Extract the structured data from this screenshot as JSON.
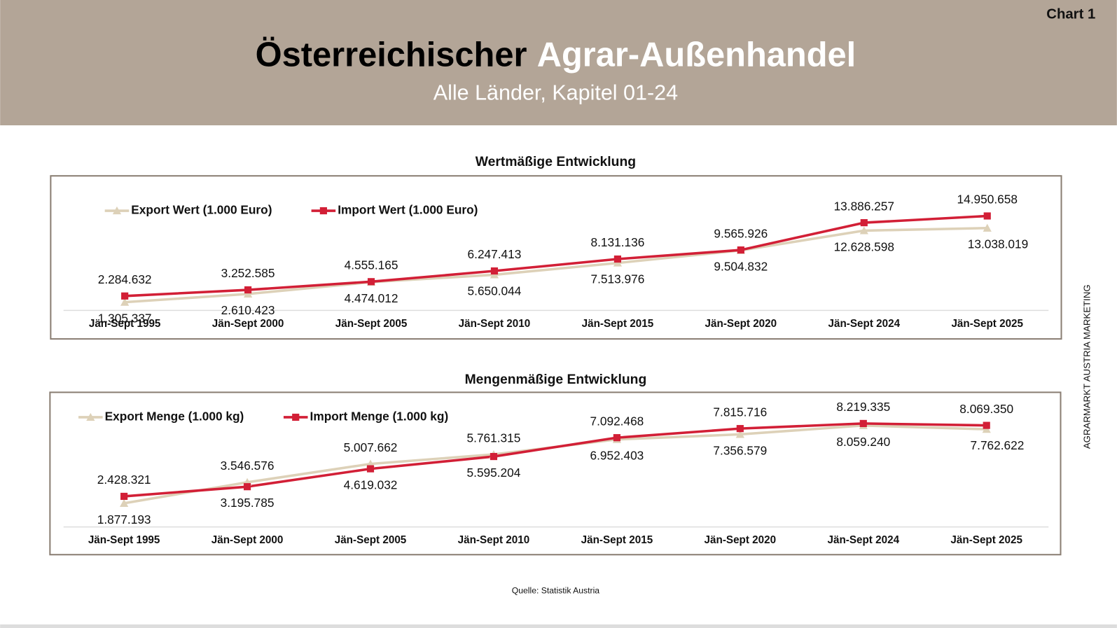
{
  "header": {
    "tag": "Chart 1",
    "title_black": "Österreichischer",
    "title_white": "Agrar-Außenhandel",
    "subtitle": "Alle Länder, Kapitel 01-24"
  },
  "side_text": "AGRARMARKT AUSTRIA MARKETING",
  "source": "Quelle: Statistik Austria",
  "chart_data": [
    {
      "type": "line",
      "title": "Wertmäßige Entwicklung",
      "categories": [
        "Jän-Sept 1995",
        "Jän-Sept 2000",
        "Jän-Sept 2005",
        "Jän-Sept 2010",
        "Jän-Sept 2015",
        "Jän-Sept 2020",
        "Jän-Sept 2024",
        "Jän-Sept 2025"
      ],
      "ylim": [
        0,
        16000000
      ],
      "series": [
        {
          "name": "Export Wert (1.000 Euro)",
          "color": "#ddd1b8",
          "marker": "triangle",
          "values": [
            1305337,
            2610423,
            4474012,
            5650044,
            7513976,
            9504832,
            12628598,
            13038019
          ],
          "value_labels": [
            "1.305.337",
            "2.610.423",
            "4.474.012",
            "5.650.044",
            "7.513.976",
            "9.504.832",
            "12.628.598",
            "13.038.019"
          ]
        },
        {
          "name": "Import Wert (1.000 Euro)",
          "color": "#d21f36",
          "marker": "square",
          "values": [
            2284632,
            3252585,
            4555165,
            6247413,
            8131136,
            9565926,
            13886257,
            14950658
          ],
          "value_labels": [
            "2.284.632",
            "3.252.585",
            "4.555.165",
            "6.247.413",
            "8.131.136",
            "9.565.926",
            "13.886.257",
            "14.950.658"
          ]
        }
      ]
    },
    {
      "type": "line",
      "title": "Mengenmäßige Entwicklung",
      "categories": [
        "Jän-Sept 1995",
        "Jän-Sept 2000",
        "Jän-Sept 2005",
        "Jän-Sept 2010",
        "Jän-Sept 2015",
        "Jän-Sept 2020",
        "Jän-Sept 2024",
        "Jän-Sept 2025"
      ],
      "ylim": [
        0,
        9000000
      ],
      "series": [
        {
          "name": "Export Menge (1.000 kg)",
          "color": "#ddd1b8",
          "marker": "triangle",
          "values": [
            1877193,
            3546576,
            5007662,
            5761315,
            6952403,
            7356579,
            8059240,
            7762622
          ],
          "value_labels": [
            "1.877.193",
            "3.546.576",
            "5.007.662",
            "5.761.315",
            "6.952.403",
            "7.356.579",
            "8.059.240",
            "7.762.622"
          ]
        },
        {
          "name": "Import Menge (1.000 kg)",
          "color": "#d21f36",
          "marker": "square",
          "values": [
            2428321,
            3195785,
            4619032,
            5595204,
            7092468,
            7815716,
            8219335,
            8069350
          ],
          "value_labels": [
            "2.428.321",
            "3.195.785",
            "4.619.032",
            "5.595.204",
            "7.092.468",
            "7.815.716",
            "8.219.335",
            "8.069.350"
          ]
        }
      ]
    }
  ]
}
